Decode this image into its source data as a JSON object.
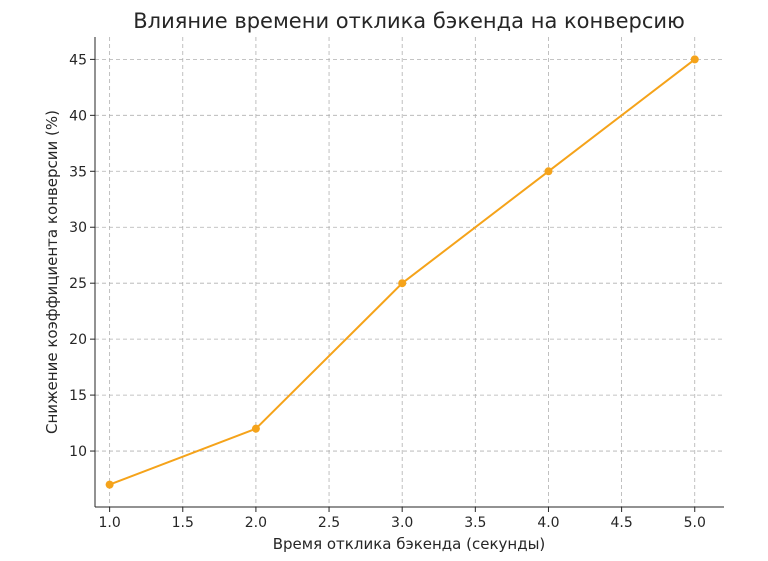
{
  "chart_data": {
    "type": "line",
    "title": "Влияние времени отклика бэкенда на конверсию",
    "xlabel": "Время отклика бэкенда (секунды)",
    "ylabel": "Снижение коэффициента конверсии (%)",
    "xlim": [
      0.9,
      5.2
    ],
    "ylim": [
      5.0,
      47.0
    ],
    "xticks": [
      1.0,
      1.5,
      2.0,
      2.5,
      3.0,
      3.5,
      4.0,
      4.5,
      5.0
    ],
    "xtick_labels": [
      "1.0",
      "1.5",
      "2.0",
      "2.5",
      "3.0",
      "3.5",
      "4.0",
      "4.5",
      "5.0"
    ],
    "yticks": [
      10,
      15,
      20,
      25,
      30,
      35,
      40,
      45
    ],
    "ytick_labels": [
      "10",
      "15",
      "20",
      "25",
      "30",
      "35",
      "40",
      "45"
    ],
    "grid": true,
    "series": [
      {
        "color": "#f5a31a",
        "marker": "circle",
        "x": [
          1.0,
          2.0,
          3.0,
          4.0,
          5.0
        ],
        "y": [
          7,
          12,
          25,
          35,
          45
        ]
      }
    ]
  }
}
